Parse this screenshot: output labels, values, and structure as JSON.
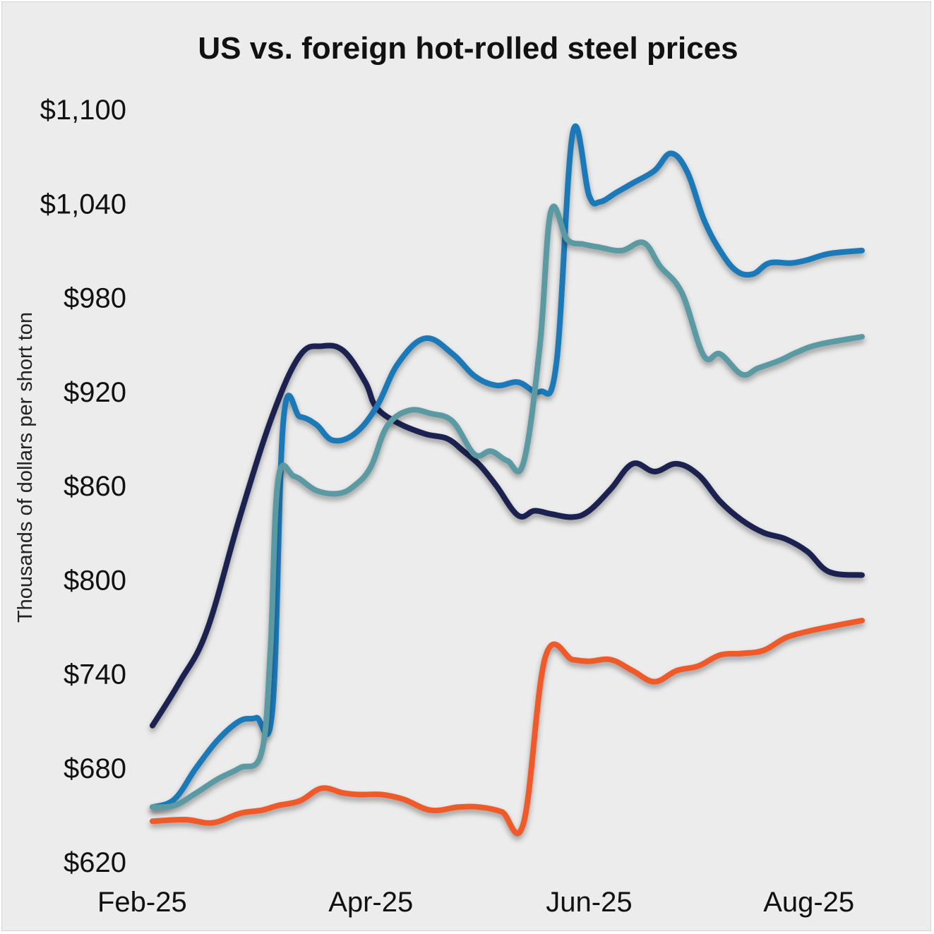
{
  "chart_data": {
    "type": "line",
    "title": "US vs. foreign hot-rolled steel prices",
    "xlabel": "",
    "ylabel": "Thousands of dollars per short ton",
    "x_ticks": [
      "Feb-25",
      "Apr-25",
      "Jun-25",
      "Aug-25"
    ],
    "y_ticks": [
      "$620",
      "$680",
      "$740",
      "$800",
      "$860",
      "$920",
      "$980",
      "$1,040",
      "$1,100"
    ],
    "y_tick_values": [
      620,
      680,
      740,
      800,
      860,
      920,
      980,
      1040,
      1100
    ],
    "ylim": [
      620,
      1100
    ],
    "x_range_months": [
      0,
      6.5
    ],
    "grid": false,
    "legend": "none",
    "series": [
      {
        "color": "#1c2350",
        "x": [
          0,
          0.25,
          0.5,
          0.8,
          1.1,
          1.35,
          1.55,
          1.75,
          1.95,
          2.05,
          2.25,
          2.5,
          2.7,
          2.85,
          3.0,
          3.15,
          3.35,
          3.5,
          3.65,
          3.85,
          4.0,
          4.2,
          4.4,
          4.6,
          4.8,
          5.0,
          5.2,
          5.4,
          5.6,
          5.8,
          6.0,
          6.2,
          6.5
        ],
        "y": [
          707,
          735,
          768,
          840,
          905,
          943,
          949,
          946,
          926,
          910,
          900,
          893,
          890,
          882,
          873,
          860,
          841,
          844,
          842,
          840,
          844,
          858,
          874,
          869,
          874,
          867,
          850,
          838,
          830,
          826,
          818,
          805,
          803
        ]
      },
      {
        "color": "#1a79b7",
        "x": [
          0,
          0.2,
          0.4,
          0.6,
          0.8,
          0.95,
          1.1,
          1.2,
          1.35,
          1.5,
          1.65,
          1.85,
          2.05,
          2.25,
          2.5,
          2.75,
          2.95,
          3.15,
          3.35,
          3.55,
          3.7,
          3.85,
          4.0,
          4.1,
          4.25,
          4.4,
          4.6,
          4.75,
          4.9,
          5.05,
          5.2,
          5.35,
          5.5,
          5.65,
          5.85,
          6.0,
          6.2,
          6.5
        ],
        "y": [
          655,
          660,
          680,
          698,
          710,
          712,
          718,
          902,
          904,
          899,
          889,
          893,
          910,
          938,
          954,
          944,
          930,
          924,
          926,
          920,
          938,
          1085,
          1045,
          1041,
          1047,
          1053,
          1061,
          1072,
          1060,
          1030,
          1010,
          997,
          995,
          1002,
          1002,
          1004,
          1008,
          1010
        ]
      },
      {
        "color": "#5b9aa3",
        "x": [
          0,
          0.2,
          0.4,
          0.6,
          0.8,
          1.0,
          1.08,
          1.15,
          1.3,
          1.5,
          1.7,
          1.85,
          2.0,
          2.15,
          2.35,
          2.55,
          2.75,
          2.95,
          3.1,
          3.25,
          3.4,
          3.55,
          3.65,
          3.8,
          3.95,
          4.1,
          4.3,
          4.5,
          4.65,
          4.85,
          5.05,
          5.2,
          5.4,
          5.55,
          5.75,
          5.9,
          6.1,
          6.5
        ],
        "y": [
          655,
          656,
          664,
          673,
          680,
          690,
          755,
          863,
          866,
          857,
          855,
          860,
          872,
          898,
          908,
          906,
          901,
          880,
          882,
          876,
          875,
          950,
          1035,
          1017,
          1014,
          1012,
          1010,
          1015,
          1000,
          983,
          943,
          944,
          931,
          935,
          940,
          945,
          950,
          955
        ]
      },
      {
        "color": "#ef5a2c",
        "x": [
          0,
          0.3,
          0.55,
          0.8,
          1.0,
          1.15,
          1.35,
          1.55,
          1.75,
          1.9,
          2.1,
          2.3,
          2.55,
          2.8,
          3.0,
          3.2,
          3.4,
          3.6,
          3.85,
          4.0,
          4.2,
          4.4,
          4.6,
          4.8,
          5.0,
          5.2,
          5.4,
          5.6,
          5.8,
          6.0,
          6.2,
          6.5
        ],
        "y": [
          646,
          647,
          645,
          651,
          653,
          656,
          659,
          667,
          664,
          663,
          663,
          660,
          653,
          655,
          655,
          652,
          645,
          751,
          749,
          748,
          749,
          742,
          735,
          742,
          745,
          752,
          753,
          755,
          763,
          767,
          770,
          774
        ]
      }
    ]
  }
}
